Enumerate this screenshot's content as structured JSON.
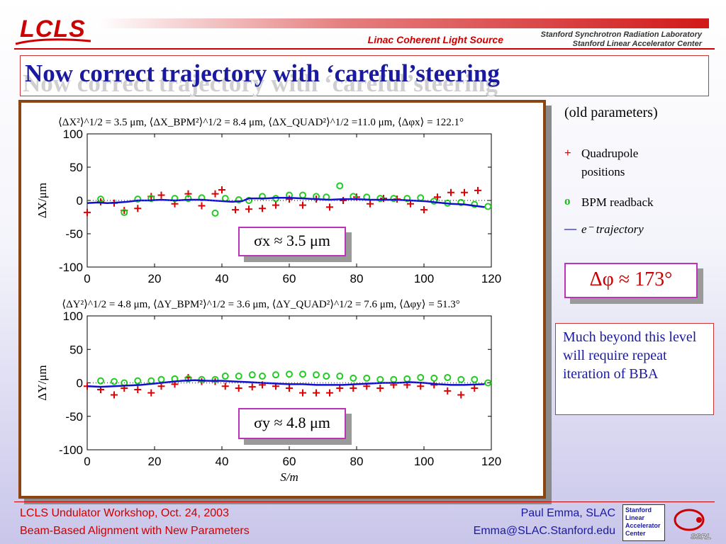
{
  "header": {
    "logo": "LCLS",
    "subtitle": "Linac Coherent Light Source",
    "lab_line1": "Stanford Synchrotron Radiation Laboratory",
    "lab_line2": "Stanford Linear Accelerator Center"
  },
  "title": "Now correct trajectory with ‘careful’steering",
  "legend": {
    "heading": "(old parameters)",
    "quad_symbol": "+",
    "quad_label_1": "Quadrupole",
    "quad_label_2": "positions",
    "bpm_symbol": "o",
    "bpm_label": "BPM readback",
    "traj_symbol": "—",
    "traj_label": "e⁻ trajectory"
  },
  "callouts": {
    "sigma_x": "σx ≈ 3.5 μm",
    "sigma_y": "σy ≈ 4.8 μm",
    "phase": "Δφ ≈ 173°"
  },
  "note": "Much beyond this level will require repeat iteration of BBA",
  "footer": {
    "left1": "LCLS Undulator Workshop, Oct. 24, 2003",
    "left2": "Beam-Based Alignment with New Parameters",
    "right1": "Paul Emma, SLAC",
    "right2": "Emma@SLAC.Stanford.edu",
    "slac_logo": [
      "Stanford",
      "Linear",
      "Accelerator",
      "Center"
    ],
    "ssrl_logo": "SSRL"
  },
  "colors": {
    "quad": "#dd0000",
    "bpm": "#22cc22",
    "trajectory": "#1010cc",
    "reference": "#555555"
  },
  "chart_data": [
    {
      "type": "scatter",
      "title": "⟨ΔX²⟩^1/2 = 3.5 μm, ⟨ΔX_BPM²⟩^1/2 = 8.4 μm, ⟨ΔX_QUAD²⟩^1/2 =11.0 μm, ⟨Δφx⟩ = 122.1°",
      "xlabel": "",
      "ylabel": "ΔX/μm",
      "xlim": [
        0,
        120
      ],
      "ylim": [
        -100,
        100
      ],
      "xticks": [
        0,
        20,
        40,
        60,
        80,
        100,
        120
      ],
      "yticks": [
        -100,
        -50,
        0,
        50,
        100
      ],
      "series": [
        {
          "name": "Quadrupole positions",
          "marker": "+",
          "x": [
            0,
            4,
            8,
            11,
            15,
            19,
            22,
            26,
            30,
            34,
            38,
            40,
            44,
            48,
            52,
            56,
            60,
            64,
            68,
            72,
            76,
            80,
            84,
            88,
            92,
            96,
            100,
            104,
            108,
            112,
            116
          ],
          "y": [
            -18,
            -2,
            -4,
            -15,
            -12,
            6,
            8,
            -5,
            10,
            -8,
            10,
            16,
            -14,
            -13,
            -12,
            -7,
            2,
            -7,
            2,
            -10,
            0,
            5,
            -5,
            3,
            2,
            -5,
            -14,
            5,
            12,
            12,
            15
          ]
        },
        {
          "name": "BPM readback",
          "marker": "o",
          "x": [
            4,
            11,
            15,
            19,
            26,
            30,
            34,
            38,
            41,
            45,
            48,
            52,
            56,
            60,
            64,
            68,
            71,
            75,
            79,
            83,
            87,
            91,
            95,
            99,
            103,
            107,
            111,
            115,
            119
          ],
          "y": [
            2,
            -18,
            2,
            3,
            3,
            3,
            4,
            -19,
            3,
            1,
            0,
            6,
            3,
            8,
            8,
            6,
            5,
            22,
            6,
            5,
            3,
            3,
            3,
            4,
            -1,
            -4,
            -3,
            -6,
            -9
          ]
        },
        {
          "name": "e⁻ trajectory",
          "line": true,
          "x": [
            0,
            3,
            6,
            9,
            12,
            15,
            18,
            22,
            26,
            30,
            34,
            37,
            40,
            43,
            46,
            48,
            50,
            53,
            56,
            60,
            64,
            68,
            72,
            76,
            80,
            84,
            88,
            92,
            96,
            100,
            104,
            108,
            112,
            118
          ],
          "y": [
            -4,
            -3,
            -4,
            -3,
            -2,
            0,
            0,
            1,
            0,
            1,
            1,
            0,
            -1,
            -2,
            -1,
            3,
            3,
            3,
            4,
            4,
            3,
            2,
            1,
            2,
            2,
            1,
            1,
            1,
            0,
            -1,
            -3,
            -5,
            -6,
            -10
          ]
        },
        {
          "name": "",
          "dotted": true,
          "x": [
            0,
            120
          ],
          "y": [
            0,
            0
          ]
        }
      ]
    },
    {
      "type": "scatter",
      "title": "⟨ΔY²⟩^1/2 = 4.8 μm, ⟨ΔY_BPM²⟩^1/2 = 3.6 μm, ⟨ΔY_QUAD²⟩^1/2 = 7.6 μm, ⟨Δφy⟩ = 51.3°",
      "xlabel": "S/m",
      "ylabel": "ΔY/μm",
      "xlim": [
        0,
        120
      ],
      "ylim": [
        -100,
        100
      ],
      "xticks": [
        0,
        20,
        40,
        60,
        80,
        100,
        120
      ],
      "yticks": [
        -100,
        -50,
        0,
        50,
        100
      ],
      "series": [
        {
          "name": "Quadrupole positions",
          "marker": "+",
          "x": [
            0,
            4,
            8,
            11,
            15,
            19,
            22,
            26,
            30,
            34,
            38,
            41,
            45,
            49,
            52,
            56,
            60,
            64,
            68,
            72,
            75,
            79,
            83,
            87,
            91,
            95,
            99,
            103,
            107,
            111,
            115
          ],
          "y": [
            -5,
            -10,
            -18,
            -8,
            -10,
            -15,
            -5,
            -2,
            8,
            2,
            2,
            -5,
            -8,
            -6,
            -3,
            -5,
            -8,
            -15,
            -15,
            -15,
            -8,
            -8,
            -5,
            -8,
            -3,
            -3,
            -5,
            -3,
            -12,
            -18,
            -8
          ]
        },
        {
          "name": "BPM readback",
          "marker": "o",
          "x": [
            4,
            8,
            11,
            15,
            19,
            22,
            26,
            30,
            34,
            38,
            41,
            45,
            49,
            52,
            56,
            60,
            64,
            68,
            71,
            75,
            79,
            83,
            87,
            91,
            95,
            99,
            103,
            107,
            111,
            115,
            119
          ],
          "y": [
            3,
            2,
            0,
            3,
            3,
            5,
            6,
            6,
            5,
            5,
            10,
            10,
            12,
            10,
            12,
            13,
            13,
            12,
            10,
            10,
            7,
            7,
            5,
            5,
            6,
            8,
            7,
            8,
            5,
            5,
            0
          ]
        },
        {
          "name": "e⁻ trajectory",
          "line": true,
          "x": [
            0,
            4,
            8,
            12,
            16,
            20,
            24,
            28,
            32,
            36,
            40,
            44,
            48,
            52,
            56,
            60,
            64,
            68,
            72,
            76,
            80,
            84,
            88,
            92,
            96,
            100,
            104,
            108,
            112,
            118
          ],
          "y": [
            -5,
            -6,
            -5,
            -4,
            -3,
            -1,
            1,
            3,
            4,
            3,
            3,
            2,
            1,
            0,
            -1,
            -2,
            -2,
            -3,
            -3,
            -3,
            -2,
            -1,
            0,
            0,
            1,
            0,
            -2,
            -3,
            -3,
            -2
          ]
        },
        {
          "name": "",
          "dotted": true,
          "x": [
            0,
            120
          ],
          "y": [
            0,
            0
          ]
        }
      ]
    }
  ]
}
